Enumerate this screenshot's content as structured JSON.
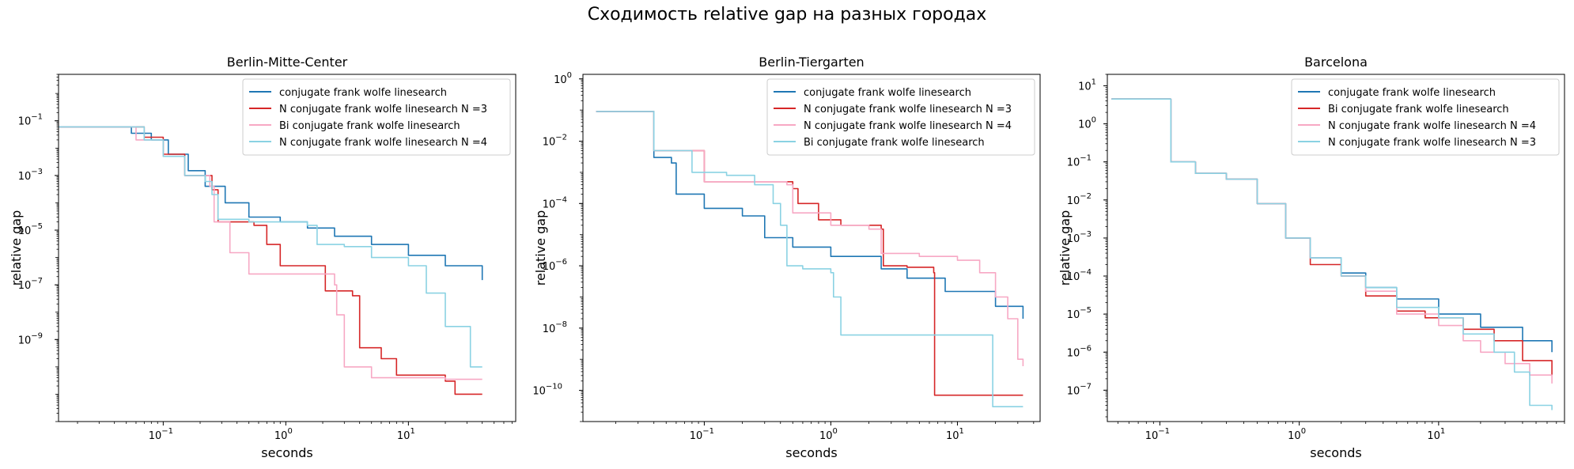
{
  "figure": {
    "suptitle": "Сходимость relative gap на разных городах"
  },
  "chart_data": [
    {
      "type": "line",
      "title": "Berlin-Mitte-Center",
      "xlabel": "seconds",
      "ylabel": "relative gap",
      "xscale": "log",
      "yscale": "log",
      "xlim": [
        0.014,
        75
      ],
      "ylim": [
        1e-12,
        5
      ],
      "xticks": [
        {
          "label": "10",
          "exp": "−1",
          "value": 0.1
        },
        {
          "label": "10",
          "exp": "0",
          "value": 1
        },
        {
          "label": "10",
          "exp": "1",
          "value": 10
        }
      ],
      "yticks": [
        {
          "label": "10",
          "exp": "−1",
          "value": 0.1
        },
        {
          "label": "10",
          "exp": "−3",
          "value": 0.001
        },
        {
          "label": "10",
          "exp": "−5",
          "value": 1e-05
        },
        {
          "label": "10",
          "exp": "−7",
          "value": 1e-07
        },
        {
          "label": "10",
          "exp": "−9",
          "value": 1e-09
        }
      ],
      "legend": "upper right",
      "series": [
        {
          "name": "conjugate frank wolfe linesearch",
          "color": "#1f77b4",
          "points": [
            [
              0.014,
              0.06
            ],
            [
              0.04,
              0.06
            ],
            [
              0.055,
              0.035
            ],
            [
              0.08,
              0.02
            ],
            [
              0.11,
              0.006
            ],
            [
              0.16,
              0.0015
            ],
            [
              0.22,
              0.0004
            ],
            [
              0.32,
              0.0001
            ],
            [
              0.5,
              3e-05
            ],
            [
              0.9,
              2e-05
            ],
            [
              1.5,
              1.2e-05
            ],
            [
              2.5,
              6e-06
            ],
            [
              5,
              3e-06
            ],
            [
              10,
              1.2e-06
            ],
            [
              20,
              5e-07
            ],
            [
              40,
              1.5e-07
            ]
          ]
        },
        {
          "name": "N conjugate frank wolfe linesearch N =3",
          "color": "#d62728",
          "points": [
            [
              0.014,
              0.06
            ],
            [
              0.045,
              0.06
            ],
            [
              0.07,
              0.025
            ],
            [
              0.1,
              0.006
            ],
            [
              0.15,
              0.001
            ],
            [
              0.25,
              0.0003
            ],
            [
              0.28,
              2e-05
            ],
            [
              0.55,
              1.5e-05
            ],
            [
              0.7,
              3e-06
            ],
            [
              0.9,
              5e-07
            ],
            [
              2,
              5e-07
            ],
            [
              2.1,
              6e-08
            ],
            [
              3.5,
              4e-08
            ],
            [
              4,
              5e-10
            ],
            [
              6,
              2e-10
            ],
            [
              8,
              5e-11
            ],
            [
              20,
              3e-11
            ],
            [
              24,
              1e-11
            ],
            [
              40,
              1e-11
            ]
          ]
        },
        {
          "name": "Bi conjugate frank wolfe linesearch",
          "color": "#f7a8c4",
          "points": [
            [
              0.014,
              0.06
            ],
            [
              0.04,
              0.06
            ],
            [
              0.06,
              0.02
            ],
            [
              0.1,
              0.005
            ],
            [
              0.15,
              0.001
            ],
            [
              0.24,
              0.0004
            ],
            [
              0.26,
              2e-05
            ],
            [
              0.35,
              1.5e-06
            ],
            [
              0.5,
              2.5e-07
            ],
            [
              1.5,
              2.5e-07
            ],
            [
              2.5,
              1e-07
            ],
            [
              2.6,
              8e-09
            ],
            [
              3,
              1e-10
            ],
            [
              5,
              4e-11
            ],
            [
              20,
              3.5e-11
            ],
            [
              40,
              3.5e-11
            ]
          ]
        },
        {
          "name": "N conjugate frank wolfe linesearch N =4",
          "color": "#8ad2e3",
          "points": [
            [
              0.014,
              0.06
            ],
            [
              0.05,
              0.06
            ],
            [
              0.07,
              0.02
            ],
            [
              0.1,
              0.005
            ],
            [
              0.15,
              0.001
            ],
            [
              0.22,
              0.0006
            ],
            [
              0.25,
              0.0002
            ],
            [
              0.28,
              2.5e-05
            ],
            [
              0.5,
              2e-05
            ],
            [
              1.5,
              1.5e-05
            ],
            [
              1.8,
              3e-06
            ],
            [
              3,
              2.5e-06
            ],
            [
              5,
              1e-06
            ],
            [
              10,
              5e-07
            ],
            [
              14,
              5e-08
            ],
            [
              20,
              3e-09
            ],
            [
              30,
              3e-09
            ],
            [
              32,
              1e-10
            ],
            [
              40,
              1e-10
            ]
          ]
        }
      ]
    },
    {
      "type": "line",
      "title": "Berlin-Tiergarten",
      "xlabel": "seconds",
      "ylabel": "relative gap",
      "xscale": "log",
      "yscale": "log",
      "xlim": [
        0.011,
        45
      ],
      "ylim": [
        1e-11,
        1.4
      ],
      "xticks": [
        {
          "label": "10",
          "exp": "−1",
          "value": 0.1
        },
        {
          "label": "10",
          "exp": "0",
          "value": 1
        },
        {
          "label": "10",
          "exp": "1",
          "value": 10
        }
      ],
      "yticks": [
        {
          "label": "10",
          "exp": "0",
          "value": 1
        },
        {
          "label": "10",
          "exp": "−2",
          "value": 0.01
        },
        {
          "label": "10",
          "exp": "−4",
          "value": 0.0001
        },
        {
          "label": "10",
          "exp": "−6",
          "value": 1e-06
        },
        {
          "label": "10",
          "exp": "−8",
          "value": 1e-08
        },
        {
          "label": "10",
          "exp": "−10",
          "value": 1e-10
        }
      ],
      "legend": "upper right",
      "series": [
        {
          "name": "conjugate frank wolfe linesearch",
          "color": "#1f77b4",
          "points": [
            [
              0.014,
              0.09
            ],
            [
              0.022,
              0.09
            ],
            [
              0.04,
              0.003
            ],
            [
              0.055,
              0.002
            ],
            [
              0.06,
              0.0002
            ],
            [
              0.1,
              7e-05
            ],
            [
              0.2,
              4e-05
            ],
            [
              0.3,
              8e-06
            ],
            [
              0.5,
              4e-06
            ],
            [
              1,
              2e-06
            ],
            [
              2.5,
              8e-07
            ],
            [
              4,
              4e-07
            ],
            [
              8,
              1.5e-07
            ],
            [
              20,
              5e-08
            ],
            [
              33,
              2e-08
            ]
          ]
        },
        {
          "name": "N conjugate frank wolfe linesearch N =3",
          "color": "#d62728",
          "points": [
            [
              0.014,
              0.09
            ],
            [
              0.025,
              0.09
            ],
            [
              0.04,
              0.005
            ],
            [
              0.1,
              0.0005
            ],
            [
              0.3,
              0.0005
            ],
            [
              0.5,
              0.0003
            ],
            [
              0.55,
              0.0001
            ],
            [
              0.8,
              3e-05
            ],
            [
              1.2,
              2e-05
            ],
            [
              2.5,
              1.5e-05
            ],
            [
              2.6,
              1e-06
            ],
            [
              4,
              9e-07
            ],
            [
              6.5,
              6e-07
            ],
            [
              6.6,
              7e-11
            ],
            [
              33,
              7e-11
            ]
          ]
        },
        {
          "name": "N conjugate frank wolfe linesearch N =4",
          "color": "#f7a8c4",
          "points": [
            [
              0.014,
              0.09
            ],
            [
              0.025,
              0.09
            ],
            [
              0.04,
              0.005
            ],
            [
              0.1,
              0.0005
            ],
            [
              0.3,
              0.0005
            ],
            [
              0.45,
              0.0004
            ],
            [
              0.5,
              5e-05
            ],
            [
              1,
              2e-05
            ],
            [
              2,
              1.5e-05
            ],
            [
              2.5,
              2.5e-06
            ],
            [
              5,
              2e-06
            ],
            [
              10,
              1.5e-06
            ],
            [
              15,
              6e-07
            ],
            [
              20,
              1e-07
            ],
            [
              25,
              2e-08
            ],
            [
              30,
              1e-09
            ],
            [
              33,
              6e-10
            ]
          ]
        },
        {
          "name": "Bi conjugate frank wolfe linesearch",
          "color": "#8ad2e3",
          "points": [
            [
              0.014,
              0.09
            ],
            [
              0.025,
              0.09
            ],
            [
              0.04,
              0.005
            ],
            [
              0.08,
              0.001
            ],
            [
              0.15,
              0.0008
            ],
            [
              0.25,
              0.0004
            ],
            [
              0.35,
              0.0001
            ],
            [
              0.4,
              2e-05
            ],
            [
              0.45,
              1e-06
            ],
            [
              0.6,
              8e-07
            ],
            [
              1,
              6e-07
            ],
            [
              1.05,
              1e-07
            ],
            [
              1.2,
              6e-09
            ],
            [
              18,
              6e-09
            ],
            [
              19,
              3e-11
            ],
            [
              33,
              3e-11
            ]
          ]
        }
      ]
    },
    {
      "type": "line",
      "title": "Barcelona",
      "xlabel": "seconds",
      "ylabel": "relative gap",
      "xscale": "log",
      "yscale": "log",
      "xlim": [
        0.042,
        80
      ],
      "ylim": [
        1.5e-08,
        20
      ],
      "xticks": [
        {
          "label": "10",
          "exp": "−1",
          "value": 0.1
        },
        {
          "label": "10",
          "exp": "0",
          "value": 1
        },
        {
          "label": "10",
          "exp": "1",
          "value": 10
        }
      ],
      "yticks": [
        {
          "label": "10",
          "exp": "1",
          "value": 10
        },
        {
          "label": "10",
          "exp": "0",
          "value": 1
        },
        {
          "label": "10",
          "exp": "−1",
          "value": 0.1
        },
        {
          "label": "10",
          "exp": "−2",
          "value": 0.01
        },
        {
          "label": "10",
          "exp": "−3",
          "value": 0.001
        },
        {
          "label": "10",
          "exp": "−4",
          "value": 0.0001
        },
        {
          "label": "10",
          "exp": "−5",
          "value": 1e-05
        },
        {
          "label": "10",
          "exp": "−6",
          "value": 1e-06
        },
        {
          "label": "10",
          "exp": "−7",
          "value": 1e-07
        }
      ],
      "legend": "upper right",
      "series": [
        {
          "name": "conjugate frank wolfe linesearch",
          "color": "#1f77b4",
          "points": [
            [
              0.045,
              4.5
            ],
            [
              0.065,
              4.5
            ],
            [
              0.12,
              0.1
            ],
            [
              0.18,
              0.05
            ],
            [
              0.3,
              0.035
            ],
            [
              0.5,
              0.008
            ],
            [
              0.8,
              0.001
            ],
            [
              1.2,
              0.0003
            ],
            [
              2,
              0.00012
            ],
            [
              3,
              5e-05
            ],
            [
              5,
              2.5e-05
            ],
            [
              10,
              1e-05
            ],
            [
              20,
              4.5e-06
            ],
            [
              40,
              2e-06
            ],
            [
              65,
              1e-06
            ]
          ]
        },
        {
          "name": "Bi conjugate frank wolfe linesearch",
          "color": "#d62728",
          "points": [
            [
              0.045,
              4.5
            ],
            [
              0.065,
              4.5
            ],
            [
              0.12,
              0.1
            ],
            [
              0.18,
              0.05
            ],
            [
              0.3,
              0.035
            ],
            [
              0.5,
              0.008
            ],
            [
              0.8,
              0.001
            ],
            [
              1.2,
              0.0002
            ],
            [
              2,
              0.0001
            ],
            [
              3,
              3e-05
            ],
            [
              5,
              1.2e-05
            ],
            [
              8,
              8e-06
            ],
            [
              15,
              4e-06
            ],
            [
              25,
              2e-06
            ],
            [
              40,
              6e-07
            ],
            [
              65,
              2.5e-07
            ]
          ]
        },
        {
          "name": "N conjugate frank wolfe linesearch N =4",
          "color": "#f7a8c4",
          "points": [
            [
              0.045,
              4.5
            ],
            [
              0.065,
              4.5
            ],
            [
              0.12,
              0.1
            ],
            [
              0.18,
              0.05
            ],
            [
              0.3,
              0.035
            ],
            [
              0.5,
              0.008
            ],
            [
              0.8,
              0.001
            ],
            [
              1.2,
              0.0003
            ],
            [
              2,
              0.0001
            ],
            [
              3,
              4e-05
            ],
            [
              5,
              1e-05
            ],
            [
              10,
              5e-06
            ],
            [
              15,
              2e-06
            ],
            [
              20,
              1e-06
            ],
            [
              30,
              5e-07
            ],
            [
              45,
              2.5e-07
            ],
            [
              65,
              1.5e-07
            ]
          ]
        },
        {
          "name": "N conjugate frank wolfe linesearch N =3",
          "color": "#8ad2e3",
          "points": [
            [
              0.045,
              4.5
            ],
            [
              0.065,
              4.5
            ],
            [
              0.12,
              0.1
            ],
            [
              0.18,
              0.05
            ],
            [
              0.3,
              0.035
            ],
            [
              0.5,
              0.008
            ],
            [
              0.8,
              0.001
            ],
            [
              1.2,
              0.0003
            ],
            [
              2,
              0.0001
            ],
            [
              3,
              5e-05
            ],
            [
              5,
              1.5e-05
            ],
            [
              10,
              8e-06
            ],
            [
              15,
              3e-06
            ],
            [
              25,
              1e-06
            ],
            [
              35,
              3e-07
            ],
            [
              45,
              4e-08
            ],
            [
              65,
              3e-08
            ]
          ]
        }
      ]
    }
  ]
}
